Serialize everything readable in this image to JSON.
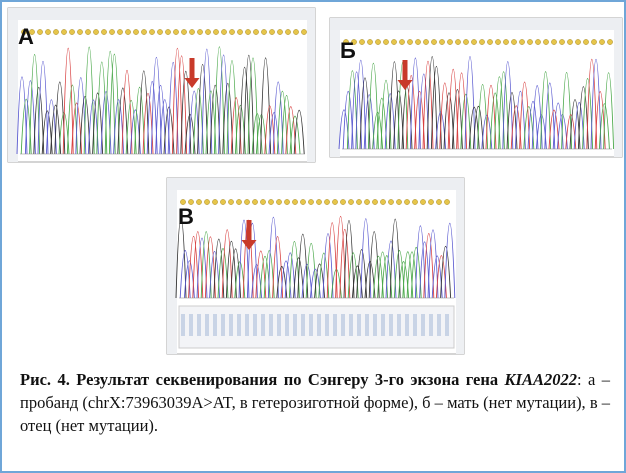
{
  "figure": {
    "panels": [
      {
        "label": "А"
      },
      {
        "label": "Б"
      },
      {
        "label": "В"
      }
    ]
  },
  "caption": {
    "label": "Рис. 4.",
    "title": "Результат секвенирования  по Сэнгеру 3-го экзона гена",
    "gene": "KIAA2022",
    "text": ": а – пробанд (chrX:73963039A>AT, в гетерозиготной форме), б – мать (нет мутации), в – отец (нет мутации)."
  }
}
